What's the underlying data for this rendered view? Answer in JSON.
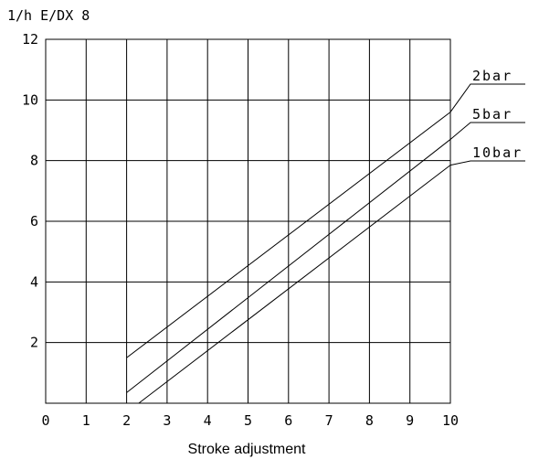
{
  "chart_data": {
    "type": "line",
    "title": "1/h E/DX 8",
    "x_label": "Stroke adjustment",
    "xlim": [
      0,
      10
    ],
    "xticks": [
      0,
      1,
      2,
      3,
      4,
      5,
      6,
      7,
      8,
      9,
      10
    ],
    "ylim": [
      0,
      12
    ],
    "yticks": [
      2,
      4,
      6,
      8,
      10,
      12
    ],
    "grid": true,
    "series": [
      {
        "name": "2bar",
        "color": "#000000",
        "x": [
          2,
          10
        ],
        "values": [
          1.5,
          9.6
        ]
      },
      {
        "name": "5bar",
        "color": "#000000",
        "x": [
          2,
          10
        ],
        "values": [
          0.35,
          8.7
        ]
      },
      {
        "name": "10bar",
        "color": "#000000",
        "x": [
          2.3,
          10
        ],
        "values": [
          0,
          7.85
        ]
      }
    ]
  }
}
